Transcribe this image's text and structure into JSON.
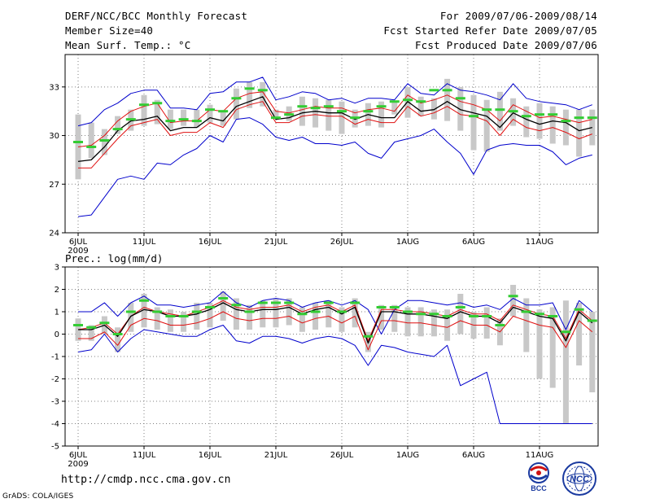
{
  "header": {
    "left": [
      "DERF/NCC/BCC Monthly Forecast",
      "Member Size=40",
      "Mean Surf. Temp.: °C"
    ],
    "right": [
      "For 2009/07/06-2009/08/14",
      "Fcst Started Refer Date 2009/07/05",
      "Fcst Produced Date 2009/07/06"
    ]
  },
  "footer": {
    "url": "http://cmdp.ncc.cma.gov.cn",
    "credit": "GrADS: COLA/IGES",
    "logo1": "BCC",
    "logo2": "NCC"
  },
  "colors": {
    "max_min": "#0000cc",
    "sd_band": "#e01010",
    "mean": "#000000",
    "median": "#33cc33",
    "box": "#c8c8c8",
    "grid": "#808080"
  },
  "chart_data": [
    {
      "type": "line",
      "title": "Mean Surf. Temp.: °C",
      "ylim": [
        24,
        35
      ],
      "yticks": [
        "24",
        "27",
        "30",
        "33"
      ],
      "xticks": [
        "6JUL",
        "11JUL",
        "16JUL",
        "21JUL",
        "26JUL",
        "1AUG",
        "6AUG",
        "11AUG"
      ],
      "xtick_year": "2009",
      "x_days": 40,
      "series": [
        {
          "name": "max",
          "values": [
            30.6,
            30.8,
            31.6,
            32.0,
            32.6,
            32.8,
            32.8,
            31.7,
            31.7,
            31.6,
            32.6,
            32.7,
            33.3,
            33.3,
            33.6,
            32.2,
            32.4,
            32.7,
            32.6,
            32.2,
            32.3,
            32.0,
            32.3,
            32.3,
            32.2,
            33.2,
            32.6,
            32.5,
            33.2,
            32.8,
            32.7,
            32.5,
            32.2,
            33.2,
            32.3,
            32.1,
            32.0,
            31.9,
            31.6,
            31.9
          ]
        },
        {
          "name": "min",
          "values": [
            25.0,
            25.1,
            26.2,
            27.3,
            27.5,
            27.3,
            28.3,
            28.2,
            28.8,
            29.2,
            30.0,
            29.6,
            31.0,
            31.1,
            30.7,
            29.9,
            29.7,
            29.9,
            29.5,
            29.5,
            29.4,
            29.6,
            28.9,
            28.6,
            29.6,
            29.8,
            30.0,
            30.4,
            29.6,
            28.9,
            27.6,
            29.1,
            29.4,
            29.5,
            29.4,
            29.4,
            29.0,
            28.2,
            28.6,
            28.8
          ]
        },
        {
          "name": "upper",
          "values": [
            29.3,
            29.4,
            30.0,
            30.9,
            31.5,
            31.8,
            32.0,
            30.8,
            30.9,
            30.9,
            31.6,
            31.5,
            32.3,
            32.6,
            32.7,
            31.5,
            31.4,
            31.6,
            31.8,
            31.7,
            31.7,
            31.4,
            31.6,
            31.7,
            31.5,
            32.5,
            32.0,
            32.2,
            32.5,
            32.1,
            31.9,
            31.6,
            30.9,
            31.9,
            31.5,
            31.1,
            31.2,
            31.0,
            30.8,
            31.0
          ]
        },
        {
          "name": "mean",
          "values": [
            28.4,
            28.5,
            29.3,
            30.3,
            30.9,
            31.0,
            31.2,
            30.3,
            30.5,
            30.5,
            31.1,
            30.9,
            31.8,
            32.1,
            32.4,
            31.0,
            31.1,
            31.4,
            31.5,
            31.4,
            31.4,
            31.0,
            31.3,
            31.1,
            31.1,
            32.1,
            31.5,
            31.6,
            32.1,
            31.6,
            31.4,
            31.2,
            30.5,
            31.4,
            31.0,
            30.7,
            30.9,
            30.8,
            30.3,
            30.5
          ]
        },
        {
          "name": "lower",
          "values": [
            28.0,
            28.0,
            28.9,
            29.8,
            30.6,
            30.8,
            31.0,
            30.0,
            30.2,
            30.2,
            30.8,
            30.5,
            31.6,
            31.9,
            32.1,
            30.8,
            30.8,
            31.2,
            31.3,
            31.2,
            31.2,
            30.7,
            31.0,
            30.8,
            30.8,
            31.8,
            31.2,
            31.4,
            31.8,
            31.3,
            31.2,
            30.9,
            30.0,
            31.0,
            30.5,
            30.3,
            30.5,
            30.2,
            29.8,
            30.1
          ]
        },
        {
          "name": "median",
          "values": [
            29.6,
            29.3,
            29.7,
            30.4,
            31.0,
            31.9,
            32.0,
            30.9,
            31.0,
            30.9,
            31.6,
            31.5,
            32.3,
            32.9,
            32.8,
            31.1,
            31.3,
            31.8,
            31.7,
            31.8,
            31.5,
            31.1,
            31.5,
            31.8,
            32.1,
            32.2,
            32.1,
            32.8,
            32.8,
            32.3,
            31.2,
            31.6,
            31.6,
            31.5,
            31.2,
            31.3,
            31.3,
            30.9,
            31.1,
            31.1
          ]
        },
        {
          "name": "box_hi",
          "values": [
            31.3,
            30.8,
            30.4,
            31.2,
            31.6,
            32.5,
            32.2,
            31.6,
            31.6,
            31.6,
            31.9,
            31.5,
            32.9,
            33.3,
            33.3,
            31.6,
            31.8,
            32.4,
            32.3,
            32.2,
            32.1,
            31.6,
            32.0,
            32.1,
            32.1,
            33.0,
            32.4,
            32.3,
            33.5,
            33.0,
            32.5,
            32.2,
            32.7,
            32.3,
            31.8,
            32.0,
            31.8,
            31.6,
            31.6,
            31.6
          ]
        },
        {
          "name": "box_lo",
          "values": [
            27.3,
            28.6,
            28.8,
            30.1,
            30.3,
            30.6,
            30.7,
            30.4,
            30.6,
            30.5,
            30.8,
            30.6,
            31.0,
            31.7,
            31.8,
            31.1,
            30.9,
            30.6,
            30.5,
            30.3,
            30.1,
            30.5,
            30.6,
            30.5,
            31.3,
            31.1,
            31.2,
            31.0,
            30.9,
            30.3,
            29.1,
            29.0,
            30.3,
            30.6,
            29.9,
            29.8,
            29.5,
            29.4,
            28.7,
            29.4
          ]
        }
      ]
    },
    {
      "type": "line",
      "title": "Prec.: log(mm/d)",
      "ylim": [
        -5,
        3
      ],
      "yticks": [
        "-5",
        "-4",
        "-3",
        "-2",
        "-1",
        "0",
        "1",
        "2",
        "3"
      ],
      "xticks": [
        "6JUL",
        "11JUL",
        "16JUL",
        "21JUL",
        "26JUL",
        "1AUG",
        "6AUG",
        "11AUG"
      ],
      "xtick_year": "2009",
      "x_days": 40,
      "series": [
        {
          "name": "max",
          "values": [
            1.0,
            1.0,
            1.4,
            0.8,
            1.4,
            1.7,
            1.3,
            1.3,
            1.2,
            1.3,
            1.4,
            1.9,
            1.4,
            1.2,
            1.5,
            1.6,
            1.5,
            1.2,
            1.4,
            1.5,
            1.3,
            1.5,
            1.1,
            0.0,
            1.1,
            1.5,
            1.5,
            1.4,
            1.3,
            1.4,
            1.2,
            1.3,
            1.1,
            1.6,
            1.3,
            1.3,
            1.4,
            0.2,
            1.5,
            1.0
          ]
        },
        {
          "name": "min",
          "values": [
            -0.8,
            -0.7,
            0.0,
            -0.8,
            -0.2,
            0.2,
            0.1,
            0.0,
            -0.1,
            -0.1,
            0.2,
            0.4,
            -0.3,
            -0.4,
            -0.1,
            -0.1,
            -0.2,
            -0.4,
            -0.2,
            -0.1,
            -0.2,
            -0.5,
            -1.4,
            -0.5,
            -0.6,
            -0.8,
            -0.9,
            -1.0,
            -0.5,
            -2.3,
            -2.0,
            -1.7,
            -4.0,
            -4.0,
            -4.0,
            -4.0,
            -4.0,
            -4.0,
            -4.0,
            -4.0
          ]
        },
        {
          "name": "upper",
          "values": [
            0.2,
            0.3,
            0.5,
            0.0,
            0.8,
            1.2,
            1.0,
            0.9,
            0.8,
            1.0,
            1.2,
            1.5,
            1.2,
            1.1,
            1.2,
            1.2,
            1.3,
            1.0,
            1.2,
            1.3,
            1.0,
            1.3,
            -0.3,
            1.1,
            1.1,
            1.0,
            1.0,
            0.9,
            0.8,
            1.1,
            0.9,
            0.9,
            0.6,
            1.3,
            1.1,
            0.9,
            0.8,
            -0.2,
            1.1,
            0.6
          ]
        },
        {
          "name": "mean",
          "values": [
            0.2,
            0.2,
            0.4,
            -0.1,
            0.8,
            1.1,
            1.0,
            0.8,
            0.8,
            0.9,
            1.1,
            1.4,
            1.1,
            1.0,
            1.1,
            1.1,
            1.2,
            0.9,
            1.1,
            1.2,
            0.9,
            1.2,
            -0.4,
            1.0,
            1.0,
            0.9,
            0.9,
            0.8,
            0.7,
            1.0,
            0.8,
            0.8,
            0.5,
            1.2,
            1.0,
            0.8,
            0.7,
            -0.3,
            1.0,
            0.5
          ]
        },
        {
          "name": "lower",
          "values": [
            -0.2,
            -0.2,
            0.1,
            -0.5,
            0.4,
            0.7,
            0.6,
            0.4,
            0.4,
            0.5,
            0.7,
            1.0,
            0.7,
            0.6,
            0.7,
            0.7,
            0.8,
            0.5,
            0.7,
            0.8,
            0.5,
            0.8,
            -0.7,
            0.6,
            0.6,
            0.5,
            0.5,
            0.4,
            0.3,
            0.6,
            0.4,
            0.4,
            0.1,
            0.8,
            0.6,
            0.4,
            0.3,
            -0.6,
            0.6,
            0.1
          ]
        },
        {
          "name": "median",
          "values": [
            0.4,
            0.3,
            0.5,
            0.0,
            1.0,
            1.5,
            1.0,
            0.8,
            0.8,
            1.0,
            1.2,
            1.6,
            1.3,
            1.0,
            1.4,
            1.4,
            1.4,
            0.9,
            1.0,
            1.4,
            1.0,
            1.4,
            -0.1,
            1.2,
            1.2,
            1.0,
            0.9,
            0.9,
            0.8,
            1.2,
            0.8,
            0.8,
            0.4,
            1.7,
            1.0,
            0.9,
            0.8,
            0.1,
            1.1,
            0.6
          ]
        },
        {
          "name": "box_hi",
          "values": [
            0.7,
            0.4,
            0.8,
            0.3,
            1.4,
            1.8,
            1.2,
            1.1,
            1.0,
            1.4,
            1.4,
            1.9,
            1.6,
            1.3,
            1.5,
            1.6,
            1.6,
            1.2,
            1.4,
            1.5,
            1.2,
            1.6,
            0.1,
            1.3,
            1.3,
            1.2,
            1.2,
            1.1,
            1.1,
            1.8,
            1.0,
            1.2,
            0.7,
            2.2,
            1.6,
            1.1,
            1.2,
            1.5,
            1.4,
            1.0
          ]
        },
        {
          "name": "box_lo",
          "values": [
            -0.3,
            -0.3,
            0.0,
            -0.8,
            0.1,
            0.3,
            0.2,
            0.1,
            0.1,
            0.2,
            0.3,
            0.6,
            0.2,
            0.2,
            0.3,
            0.3,
            0.4,
            0.1,
            0.2,
            0.3,
            0.1,
            0.3,
            -0.8,
            0.2,
            0.1,
            -0.1,
            -0.1,
            -0.1,
            -0.3,
            0.0,
            -0.2,
            -0.2,
            -0.5,
            0.8,
            -0.8,
            -2.0,
            -2.4,
            -4.0,
            -1.4,
            -2.6
          ]
        }
      ]
    }
  ]
}
